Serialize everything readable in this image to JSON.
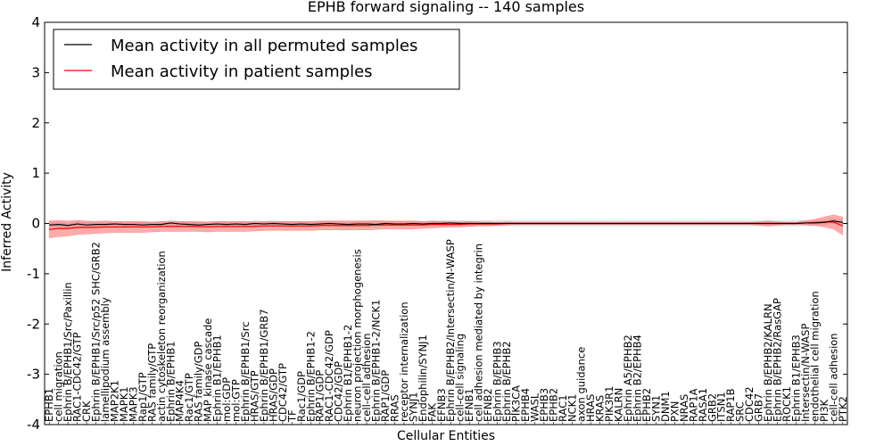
{
  "chart_data": {
    "type": "line",
    "title": "EPHB forward signaling -- 140 samples",
    "xlabel": "Cellular Entities",
    "ylabel": "Inferred Activity",
    "ylim": [
      -4,
      4
    ],
    "yticks": [
      4,
      3,
      2,
      1,
      0,
      -1,
      -2,
      -3,
      -4
    ],
    "grid": false,
    "legend_position": "top-left",
    "colors": {
      "permuted": "#000000",
      "patient": "#ff0000",
      "patient_band": "#ff6666",
      "permuted_band": "#bbbbbb"
    },
    "categories": [
      "EPHB1",
      "cell migration",
      "Ephrin B/EPHB1/Src/Paxillin",
      "RAC1-CDC42/GTP",
      "CRK",
      "Ephrin B/EPHB1/Src/p52 SHC/GRB2",
      "lamellipodium assembly",
      "MAP2K1",
      "MAPK1",
      "MAPK3",
      "Rap1/GTP",
      "RAS family/GTP",
      "actin cytoskeleton reorganization",
      "Ephrin B/EPHB1",
      "MAP4K4",
      "Rac1/GTP",
      "RAS family/GDP",
      "MAP kinase cascade",
      "Ephrin B1/EPHB1",
      "mol:GDP",
      "mol:GTP",
      "Ephrin B/EPHB1/Src",
      "HRAS/GTP",
      "Ephrin B/EPHB1/GRB7",
      "HRAS/GDP",
      "CDC42/GTP",
      "TF",
      "Rac1/GDP",
      "Ephrin B/EPHB1-2",
      "RAP1/GDP",
      "RAC1-CDC42/GDP",
      "CDC42/GDP",
      "Ephrin B1/EPHB1-2",
      "neuron projection morphogenesis",
      "cell-cell adhesion",
      "Ephrin B/EPHB1-2/NCK1",
      "RAP1/GDP",
      "RRAS",
      "receptor internalization",
      "SYNJ1",
      "Endophilin/SYNJ1",
      "FAK",
      "EFNB3",
      "Ephrin B/EPHB2/Intersectin/N-WASP",
      "cell-cell signaling",
      "EFNB1",
      "cell adhesion mediated by integrin",
      "EFNB2",
      "Ephrin B/EPHB3",
      "Ephrin B/EPHB2",
      "PIK3CA",
      "EPHB4",
      "WASL",
      "EPHB3",
      "EPHB2",
      "RAC1",
      "NCK1",
      "axon guidance",
      "HRAS",
      "KRAS",
      "PIK3R1",
      "KALRN",
      "Ephrin A5/EPHB2",
      "Ephrin B2/EPHB4",
      "EPHB2",
      "SYN1",
      "DNM1",
      "PXN",
      "NRAS",
      "RAP1A",
      "RASA1",
      "GRB2",
      "ITSN1",
      "RAP1B",
      "SRC",
      "CDC42",
      "GRB7",
      "Ephrin B/EPHB2/KALRN",
      "Ephrin B/EPHB2/RasGAP",
      "ROCK1",
      "Ephrin B1/EPHB3",
      "Intersectin/N-WASP",
      "endothelial cell migration",
      "PI3K",
      "cell-cell adhesion",
      "PTK2"
    ],
    "series": [
      {
        "name": "Mean activity in all permuted samples",
        "color": "#000000",
        "values": [
          -0.03,
          -0.02,
          -0.04,
          -0.01,
          -0.03,
          -0.02,
          -0.02,
          -0.01,
          -0.02,
          -0.02,
          -0.03,
          -0.02,
          -0.02,
          0.01,
          -0.01,
          -0.02,
          -0.03,
          -0.02,
          -0.01,
          -0.02,
          -0.01,
          -0.02,
          0.0,
          -0.01,
          0.0,
          -0.01,
          -0.02,
          -0.01,
          -0.02,
          -0.01,
          0.0,
          -0.01,
          -0.02,
          -0.01,
          -0.01,
          -0.02,
          0.0,
          -0.01,
          -0.01,
          0.0,
          -0.01,
          0.0,
          0.0,
          0.01,
          0.0,
          0.0,
          0.0,
          0.0,
          0.0,
          0.0,
          0.0,
          0.0,
          0.0,
          0.0,
          0.0,
          0.0,
          0.0,
          0.0,
          0.0,
          0.0,
          0.0,
          0.0,
          0.0,
          0.0,
          0.0,
          0.0,
          0.0,
          0.0,
          0.0,
          0.0,
          0.0,
          0.0,
          0.0,
          0.0,
          0.0,
          0.0,
          0.0,
          0.0,
          0.0,
          0.0,
          0.0,
          0.01,
          0.01,
          0.02,
          0.05,
          0.02
        ],
        "band": 0.05
      },
      {
        "name": "Mean activity in patient samples",
        "color": "#ff0000",
        "values": [
          -0.12,
          -0.1,
          -0.1,
          -0.08,
          -0.08,
          -0.08,
          -0.07,
          -0.07,
          -0.07,
          -0.07,
          -0.07,
          -0.07,
          -0.06,
          -0.06,
          -0.06,
          -0.06,
          -0.06,
          -0.07,
          -0.06,
          -0.06,
          -0.06,
          -0.06,
          -0.06,
          -0.05,
          -0.05,
          -0.05,
          -0.05,
          -0.05,
          -0.05,
          -0.04,
          -0.04,
          -0.04,
          -0.04,
          -0.04,
          -0.04,
          -0.03,
          -0.03,
          -0.03,
          -0.03,
          -0.03,
          -0.03,
          -0.02,
          -0.02,
          -0.02,
          -0.02,
          -0.01,
          -0.01,
          -0.01,
          -0.01,
          0.0,
          0.0,
          0.0,
          0.0,
          0.0,
          0.0,
          0.0,
          0.0,
          0.0,
          0.0,
          0.0,
          0.0,
          0.0,
          0.0,
          0.0,
          0.0,
          0.0,
          0.0,
          0.0,
          0.0,
          0.0,
          0.0,
          0.0,
          0.0,
          0.0,
          0.0,
          0.0,
          0.0,
          0.0,
          0.0,
          0.0,
          0.0,
          0.01,
          0.02,
          0.03,
          0.03,
          -0.05
        ],
        "band": [
          0.17,
          0.16,
          0.15,
          0.14,
          0.13,
          0.12,
          0.12,
          0.11,
          0.11,
          0.11,
          0.11,
          0.1,
          0.1,
          0.1,
          0.1,
          0.1,
          0.1,
          0.1,
          0.1,
          0.1,
          0.1,
          0.1,
          0.09,
          0.09,
          0.09,
          0.09,
          0.09,
          0.09,
          0.09,
          0.09,
          0.09,
          0.09,
          0.09,
          0.09,
          0.09,
          0.09,
          0.08,
          0.08,
          0.08,
          0.08,
          0.07,
          0.07,
          0.06,
          0.05,
          0.05,
          0.05,
          0.04,
          0.04,
          0.03,
          0.03,
          0.02,
          0.02,
          0.02,
          0.02,
          0.02,
          0.02,
          0.02,
          0.02,
          0.02,
          0.02,
          0.02,
          0.02,
          0.02,
          0.02,
          0.02,
          0.02,
          0.02,
          0.02,
          0.02,
          0.02,
          0.02,
          0.02,
          0.02,
          0.02,
          0.02,
          0.02,
          0.03,
          0.05,
          0.03,
          0.02,
          0.02,
          0.04,
          0.06,
          0.1,
          0.14,
          0.18
        ]
      }
    ]
  }
}
